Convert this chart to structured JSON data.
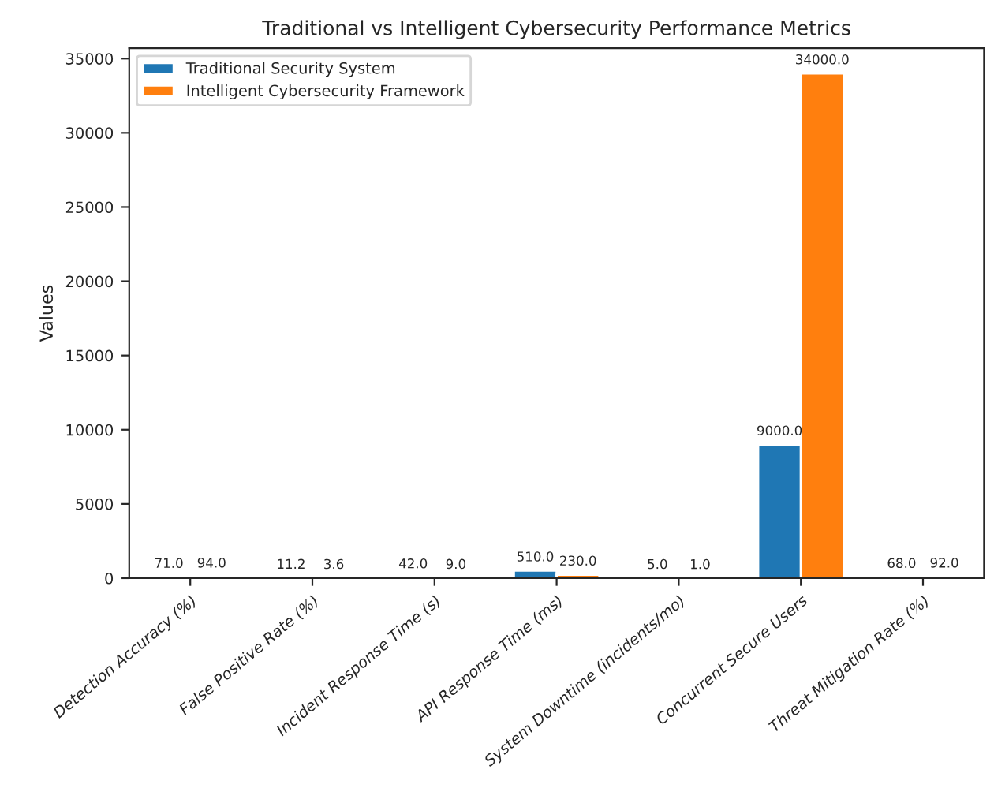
{
  "chart_data": {
    "type": "bar",
    "title": "Traditional vs Intelligent Cybersecurity Performance Metrics",
    "ylabel": "Values",
    "categories": [
      "Detection Accuracy (%)",
      "False Positive Rate (%)",
      "Incident Response Time (s)",
      "API Response Time (ms)",
      "System Downtime (incidents/mo)",
      "Concurrent Secure Users",
      "Threat Mitigation Rate (%)"
    ],
    "series": [
      {
        "name": "Traditional Security System",
        "color": "#1f77b4",
        "values": [
          71,
          11.2,
          42,
          510,
          5,
          9000,
          68
        ],
        "value_labels": [
          "71.0",
          "11.2",
          "42.0",
          "510.0",
          "5.0",
          "9000.0",
          "68.0"
        ]
      },
      {
        "name": "Intelligent Cybersecurity Framework",
        "color": "#ff7f0e",
        "values": [
          94,
          3.6,
          9,
          230,
          1,
          34000,
          92
        ],
        "value_labels": [
          "94.0",
          "3.6",
          "9.0",
          "230.0",
          "1.0",
          "34000.0",
          "92.0"
        ]
      }
    ],
    "ylim": [
      0,
      35700
    ],
    "yticks": [
      0,
      5000,
      10000,
      15000,
      20000,
      25000,
      30000,
      35000
    ],
    "grid": false,
    "legend": "top left"
  }
}
